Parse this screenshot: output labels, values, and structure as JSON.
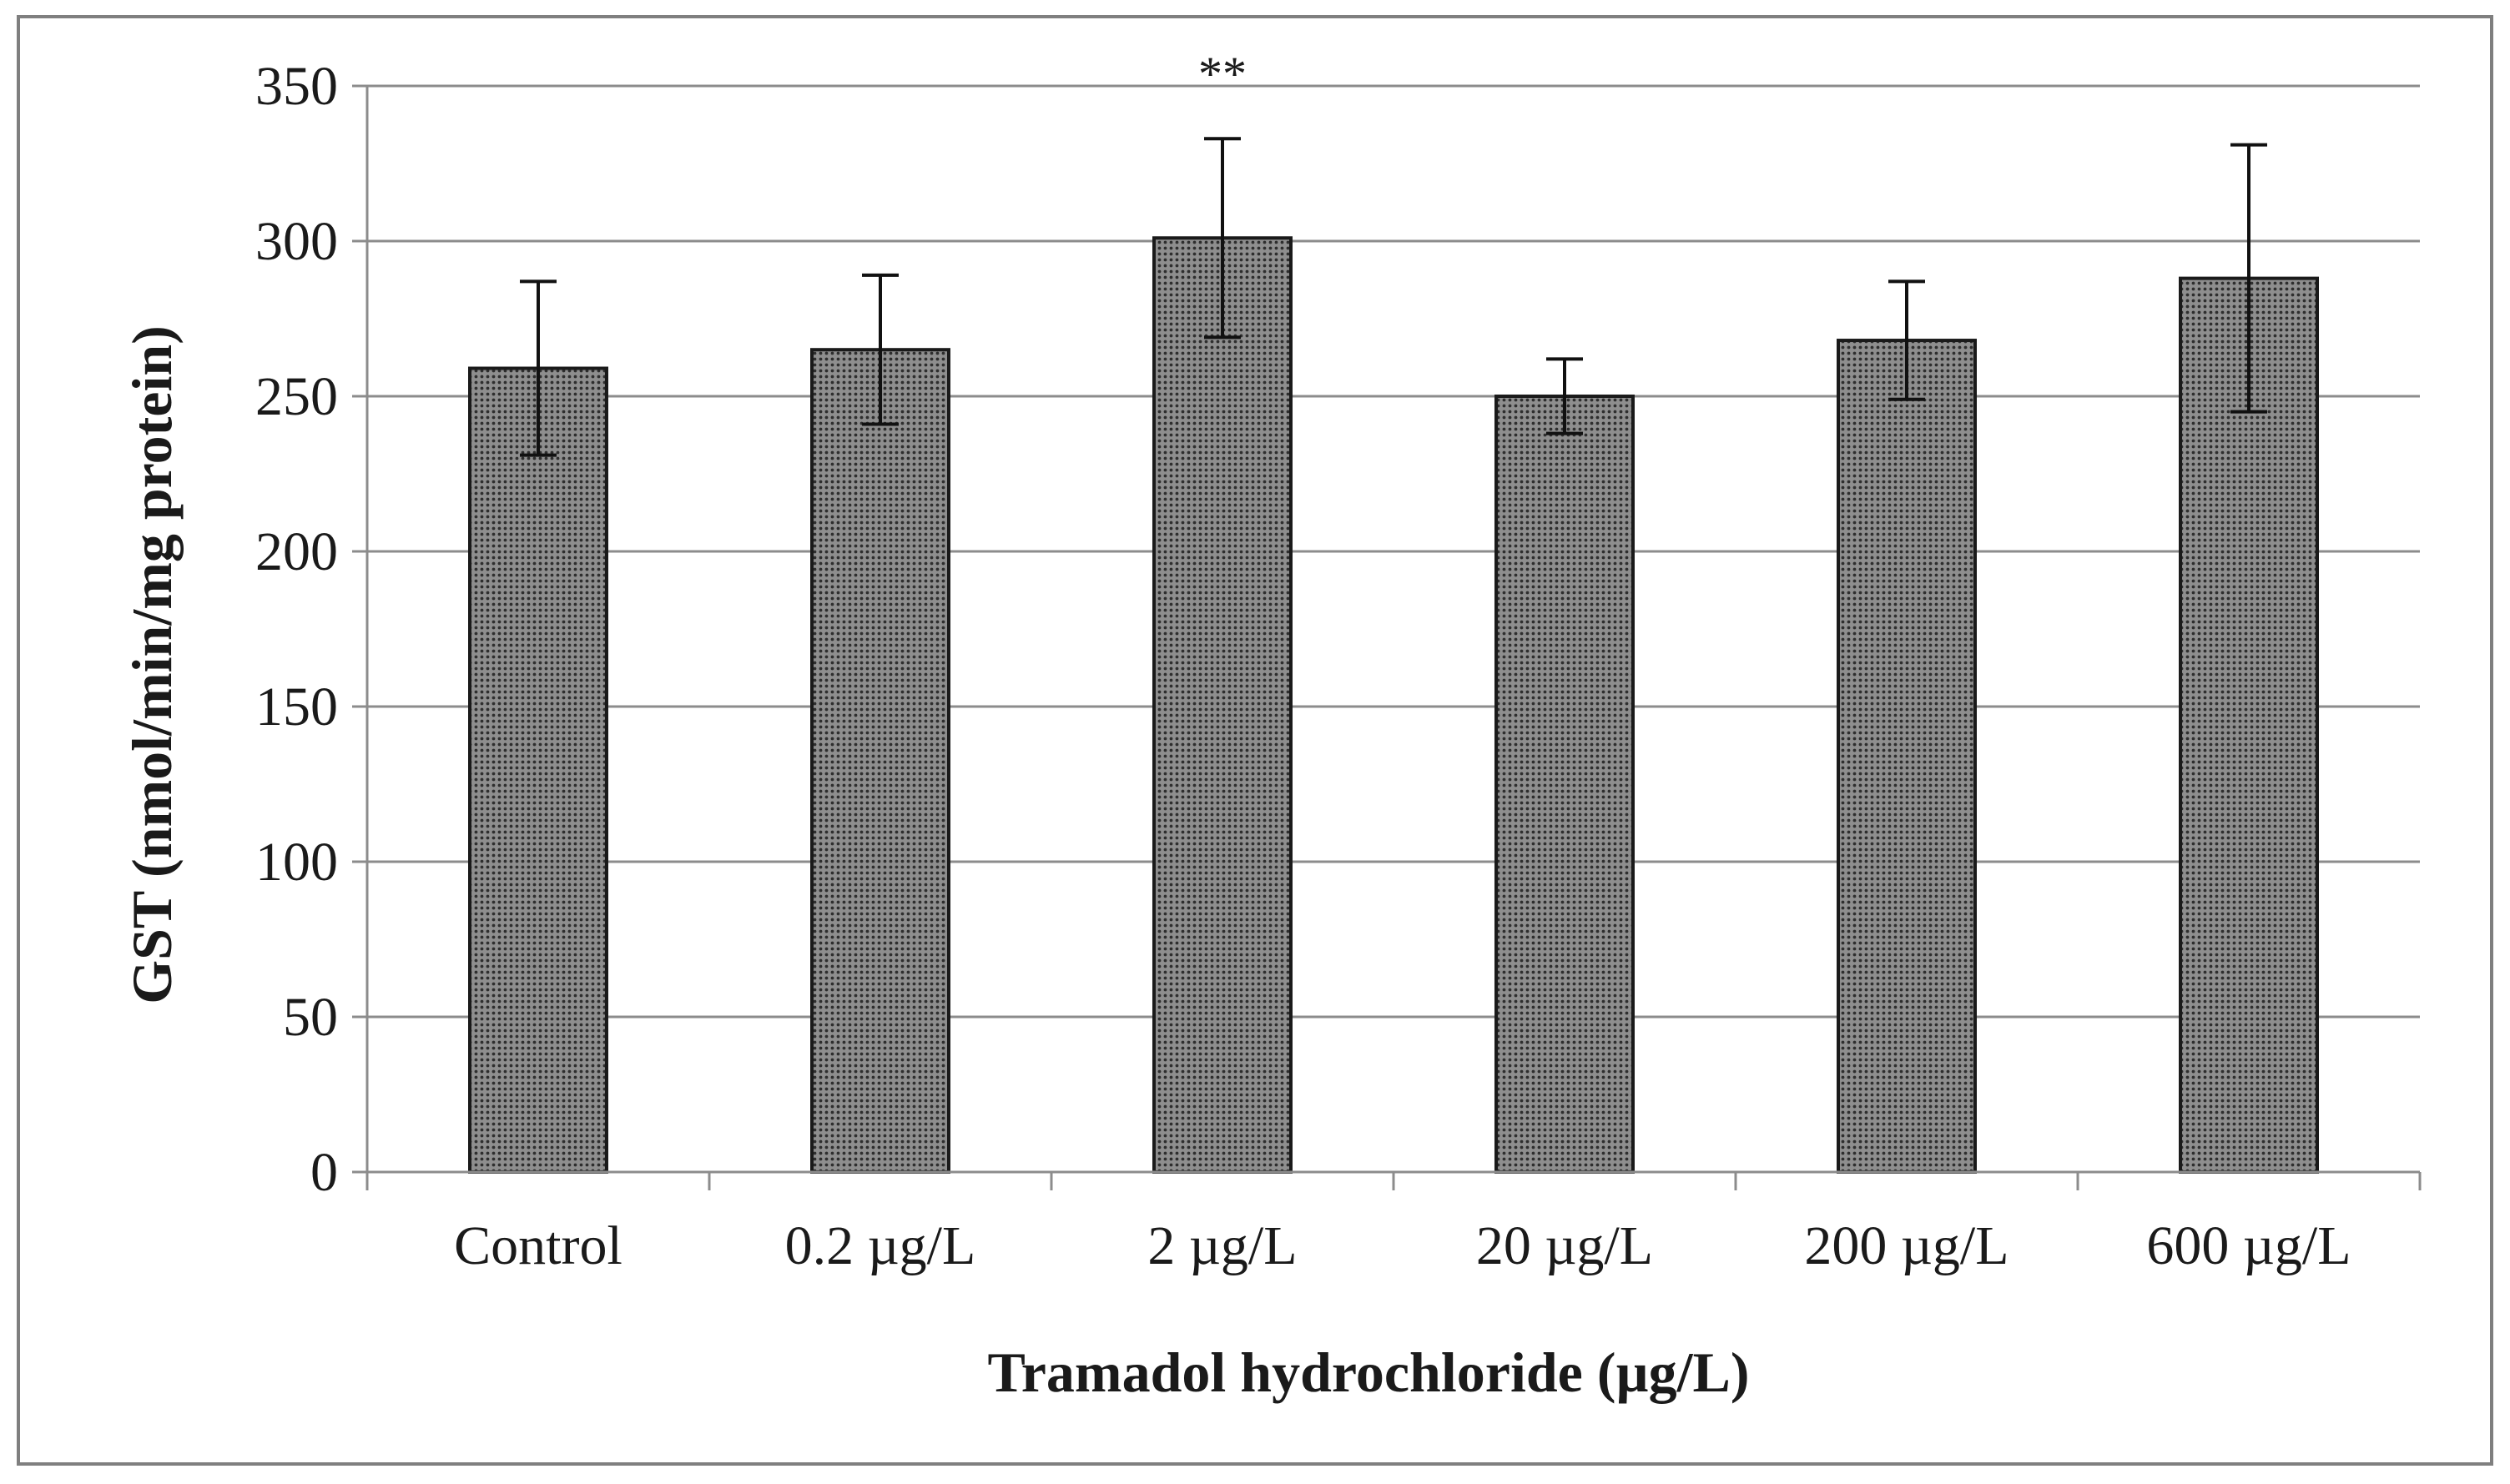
{
  "chart_data": {
    "type": "bar",
    "title": "",
    "xlabel": "Tramadol hydrochloride (µg/L)",
    "ylabel": "GST (nmol/min/mg protein)",
    "ylim": [
      0,
      350
    ],
    "yticks": [
      0,
      50,
      100,
      150,
      200,
      250,
      300,
      350
    ],
    "grid": true,
    "legend": "none",
    "categories": [
      "Control",
      "0.2 µg/L",
      "2 µg/L",
      "20 µg/L",
      "200 µg/L",
      "600 µg/L"
    ],
    "series": [
      {
        "name": "GST",
        "values": [
          259,
          265,
          301,
          250,
          268,
          288
        ],
        "error": [
          28,
          24,
          32,
          12,
          19,
          43
        ]
      }
    ],
    "annotations": [
      {
        "category": "2 µg/L",
        "text": "**"
      }
    ],
    "colors": {
      "bar_fill": "#8e8e8e",
      "bar_dot": "#2e2e2e",
      "bar_stroke": "#1a1a1a",
      "grid": "#8c8c8c",
      "frame": "#7f7f7f"
    }
  }
}
